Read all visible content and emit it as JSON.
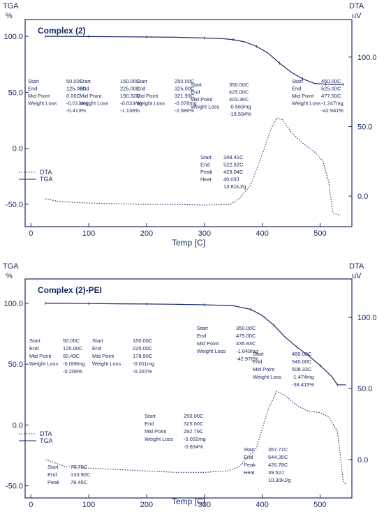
{
  "chart_data": [
    {
      "type": "line",
      "title": "Complex (2)",
      "left_axis": {
        "label_top": "TGA",
        "label_bottom": "%",
        "ticks": [
          "100.0",
          "50.0",
          "0.0",
          "-50.0"
        ],
        "ylim": [
          -70,
          115
        ]
      },
      "right_axis": {
        "label_top": "DTA",
        "label_bottom": "uV",
        "ticks": [
          "100.0",
          "50.0",
          "0.0"
        ],
        "ylim": [
          -22,
          127
        ]
      },
      "x_axis": {
        "label": "Temp [C]",
        "ticks": [
          "0",
          "100",
          "200",
          "300",
          "400",
          "500"
        ],
        "xlim": [
          -10,
          555
        ]
      },
      "legend": [
        {
          "name": "DTA",
          "style": "dotted"
        },
        {
          "name": "TGA",
          "style": "solid"
        }
      ],
      "series": [
        {
          "name": "TGA",
          "axis": "left",
          "x": [
            25,
            50,
            100,
            150,
            200,
            250,
            300,
            330,
            350,
            370,
            390,
            410,
            430,
            450,
            470,
            490,
            510,
            522,
            540
          ],
          "y": [
            100,
            100,
            99.8,
            99.6,
            99.4,
            99.2,
            98.5,
            98,
            97,
            95,
            91,
            85,
            76,
            68,
            62,
            58,
            57.2,
            57,
            57
          ]
        },
        {
          "name": "DTA",
          "axis": "right",
          "x": [
            25,
            50,
            100,
            150,
            200,
            250,
            300,
            345,
            360,
            380,
            400,
            415,
            425,
            435,
            450,
            470,
            490,
            505,
            515,
            522,
            535
          ],
          "y": [
            -2,
            -4,
            -5,
            -5.5,
            -6,
            -6,
            -6.5,
            -6,
            -2,
            8,
            30,
            48,
            56,
            55,
            46,
            38,
            32,
            25,
            10,
            -12,
            -14
          ]
        }
      ],
      "annotations": [
        {
          "lines": [
            [
              "Start",
              "50.00C"
            ],
            [
              "End",
              "125.00C"
            ],
            [
              "Mid Point",
              "0.00C"
            ],
            [
              "Weight Loss",
              "-0.012mg"
            ],
            [
              "",
              "-0.413%"
            ]
          ]
        },
        {
          "lines": [
            [
              "Start",
              "150.00C"
            ],
            [
              "End",
              "225.00C"
            ],
            [
              "Mid Point",
              "190.32C"
            ],
            [
              "Weight Loss",
              "-0.033mg"
            ],
            [
              "",
              "-1.136%"
            ]
          ]
        },
        {
          "lines": [
            [
              "Start",
              "250.00C"
            ],
            [
              "End",
              "325.00C"
            ],
            [
              "Mid Point",
              "321.93C"
            ],
            [
              "Weight Loss",
              "-0.078mg"
            ],
            [
              "",
              "-2.686%"
            ]
          ]
        },
        {
          "lines": [
            [
              "Start",
              "350.00C"
            ],
            [
              "End",
              "425.00C"
            ],
            [
              "Mid Point",
              "403.36C"
            ],
            [
              "Weight Loss",
              "-0.569mg"
            ],
            [
              "",
              "-19.594%"
            ]
          ]
        },
        {
          "lines": [
            [
              "Start",
              "450.00C"
            ],
            [
              "End",
              "525.00C"
            ],
            [
              "Mid Point",
              "477.50C"
            ],
            [
              "Weight Loss",
              "-1.247mg"
            ],
            [
              "",
              "-42.941%"
            ]
          ]
        },
        {
          "lines": [
            [
              "Start",
              "348.41C"
            ],
            [
              "End",
              "522.92C"
            ],
            [
              "Peak",
              "429.04C"
            ],
            [
              "Heat",
              "40.09J"
            ],
            [
              "",
              "13.81kJ/g"
            ]
          ]
        }
      ]
    },
    {
      "type": "line",
      "title": "Complex (2)-PEI",
      "left_axis": {
        "label_top": "TGA",
        "label_bottom": "%",
        "ticks": [
          "100.0",
          "50.0",
          "0.0",
          "-50.0"
        ],
        "ylim": [
          -60,
          120
        ]
      },
      "right_axis": {
        "label_top": "DTA",
        "label_bottom": "uV",
        "ticks": [
          "100.0",
          "50.0",
          "0.0"
        ],
        "ylim": [
          -27,
          127
        ]
      },
      "x_axis": {
        "label": "Temp [C]",
        "ticks": [
          "0",
          "100",
          "200",
          "300",
          "400",
          "500"
        ],
        "xlim": [
          -10,
          555
        ]
      },
      "legend": [
        {
          "name": "DTA",
          "style": "dotted"
        },
        {
          "name": "TGA",
          "style": "solid"
        }
      ],
      "series": [
        {
          "name": "TGA",
          "axis": "left",
          "x": [
            25,
            50,
            100,
            150,
            200,
            250,
            300,
            350,
            380,
            400,
            420,
            440,
            460,
            480,
            500,
            520,
            530,
            545
          ],
          "y": [
            100,
            100,
            99.8,
            99.6,
            99.4,
            99.2,
            98.8,
            98,
            95,
            90,
            82,
            72,
            64,
            57,
            49,
            40,
            33,
            33
          ]
        },
        {
          "name": "DTA",
          "axis": "right",
          "x": [
            25,
            60,
            100,
            150,
            200,
            250,
            300,
            340,
            360,
            390,
            410,
            425,
            440,
            460,
            480,
            500,
            515,
            530,
            540,
            545
          ],
          "y": [
            0,
            -5,
            -6,
            -7,
            -8,
            -9,
            -9,
            -8,
            -5,
            8,
            35,
            48,
            45,
            38,
            34,
            33,
            30,
            20,
            -15,
            -18
          ]
        }
      ],
      "annotations": [
        {
          "lines": [
            [
              "Start",
              "50.00C"
            ],
            [
              "End",
              "125.00C"
            ],
            [
              "Mid Point",
              "50.43C"
            ],
            [
              "Weight Loss",
              "-0.008mg"
            ],
            [
              "",
              "-0.208%"
            ]
          ]
        },
        {
          "lines": [
            [
              "Start",
              "150.00C"
            ],
            [
              "End",
              "225.00C"
            ],
            [
              "Mid Point",
              "178.90C"
            ],
            [
              "Weight Loss",
              "-0.011mg"
            ],
            [
              "",
              "-0.287%"
            ]
          ]
        },
        {
          "lines": [
            [
              "Start",
              "350.00C"
            ],
            [
              "End",
              "475.00C"
            ],
            [
              "Mid Point",
              "435.83C"
            ],
            [
              "Weight Loss",
              "-1.649mg"
            ],
            [
              "",
              "-42.976%"
            ]
          ]
        },
        {
          "lines": [
            [
              "Start",
              "480.00C"
            ],
            [
              "End",
              "540.00C"
            ],
            [
              "Mid Point",
              "508.33C"
            ],
            [
              "Weight Loss",
              "-1.474mg"
            ],
            [
              "",
              "-38.415%"
            ]
          ]
        },
        {
          "lines": [
            [
              "Start",
              "250.00C"
            ],
            [
              "End",
              "325.00C"
            ],
            [
              "Mid Point",
              "292.79C"
            ],
            [
              "Weight Loss",
              "-0.032mg"
            ],
            [
              "",
              "-0.834%"
            ]
          ]
        },
        {
          "lines": [
            [
              "Start",
              "78.75C"
            ],
            [
              "End",
              "133.90C"
            ],
            [
              "Peak",
              "78.45C"
            ]
          ]
        },
        {
          "lines": [
            [
              "Start",
              "357.71C"
            ],
            [
              "End",
              "544.35C"
            ],
            [
              "Peak",
              "426.78C"
            ],
            [
              "Heat",
              "39.52J"
            ],
            [
              "",
              "10.30kJ/g"
            ]
          ]
        }
      ]
    }
  ]
}
